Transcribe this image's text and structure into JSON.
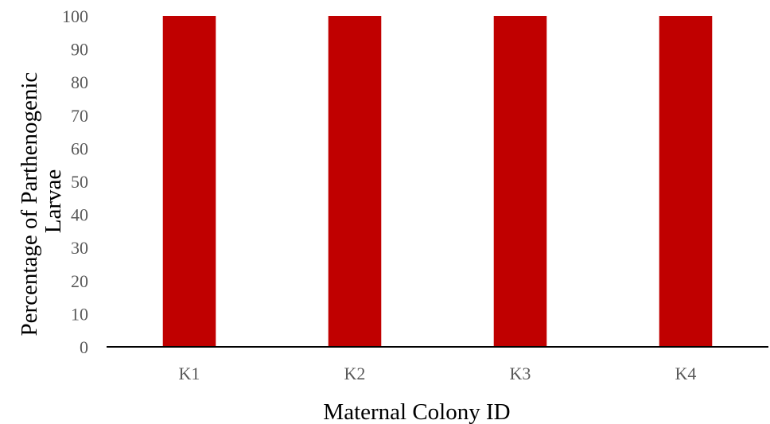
{
  "chart_data": {
    "type": "bar",
    "title": "",
    "categories": [
      "K1",
      "K2",
      "K3",
      "K4"
    ],
    "series": [
      {
        "values": [
          100,
          100,
          100,
          100
        ]
      }
    ],
    "xlabel": "Maternal Colony ID",
    "ylabel_lines": [
      "Percentage of Parthenogenic",
      "Larvae"
    ],
    "ylim": [
      0,
      100
    ],
    "yticks": [
      "0",
      "10",
      "20",
      "30",
      "40",
      "50",
      "60",
      "70",
      "80",
      "90",
      "100"
    ],
    "bar_color": "#C00000",
    "grid": false,
    "legend": "none"
  }
}
